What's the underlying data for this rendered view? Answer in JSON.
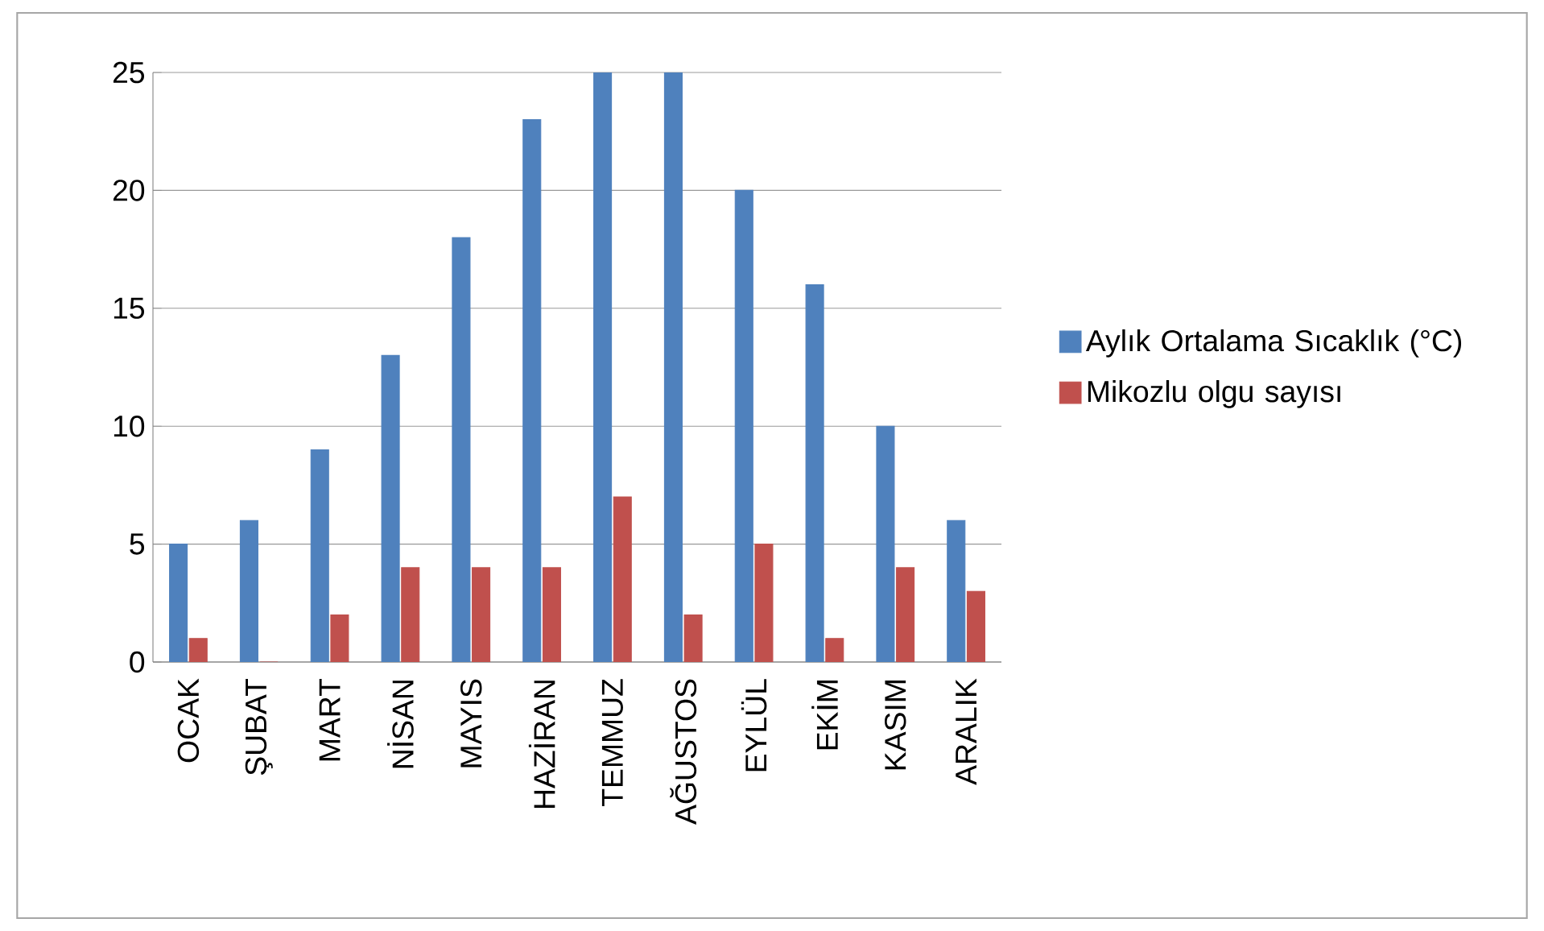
{
  "chart_data": {
    "type": "bar",
    "categories": [
      "OCAK",
      "ŞUBAT",
      "MART",
      "NİSAN",
      "MAYIS",
      "HAZİRAN",
      "TEMMUZ",
      "AĞUSTOS",
      "EYLÜL",
      "EKİM",
      "KASIM",
      "ARALIK"
    ],
    "series": [
      {
        "name": "Aylık Ortalama Sıcaklık (°C)",
        "color": "#4f81bd",
        "values": [
          5,
          6,
          9,
          13,
          18,
          23,
          25,
          25,
          20,
          16,
          10,
          6
        ]
      },
      {
        "name": "Mikozlu olgu sayısı",
        "color": "#c0504d",
        "values": [
          1,
          0,
          2,
          4,
          4,
          4,
          7,
          2,
          5,
          1,
          4,
          3
        ]
      }
    ],
    "ylim": [
      0,
      25
    ],
    "yticks": [
      0,
      5,
      10,
      15,
      20,
      25
    ],
    "grid": "y",
    "legend": "right"
  }
}
